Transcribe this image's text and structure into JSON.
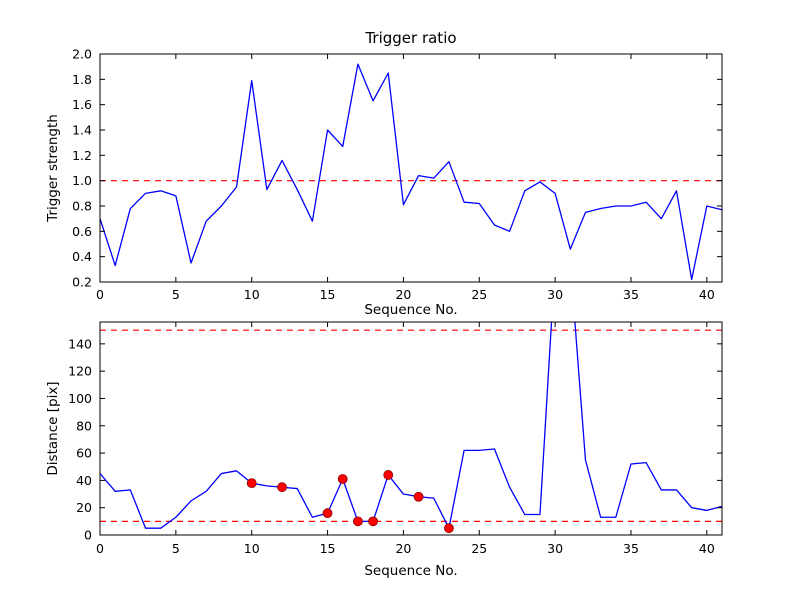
{
  "figure": {
    "background": "#ffffff",
    "line_color": "#0000ff",
    "threshold_color": "#ff0000",
    "marker_color": "#ff0000",
    "axes_color": "#000000"
  },
  "chart_data": [
    {
      "type": "line",
      "name": "trigger-ratio-chart",
      "title": "Trigger ratio",
      "xlabel": "Sequence No.",
      "ylabel": "Trigger strength",
      "xlim": [
        0,
        41
      ],
      "ylim": [
        0.2,
        2.0
      ],
      "xticks": [
        "0",
        "5",
        "10",
        "15",
        "20",
        "25",
        "30",
        "35",
        "40"
      ],
      "yticks": [
        "0.2",
        "0.4",
        "0.6",
        "0.8",
        "1.0",
        "1.2",
        "1.4",
        "1.6",
        "1.8",
        "2.0"
      ],
      "grid": false,
      "legend": null,
      "x": [
        0,
        1,
        2,
        3,
        4,
        5,
        6,
        7,
        8,
        9,
        10,
        11,
        12,
        13,
        14,
        15,
        16,
        17,
        18,
        19,
        20,
        21,
        22,
        23,
        24,
        25,
        26,
        27,
        28,
        29,
        30,
        31,
        32,
        33,
        34,
        35,
        36,
        37,
        38,
        39,
        40,
        41
      ],
      "series": [
        {
          "name": "trigger-strength",
          "color": "#0000ff",
          "values": [
            0.7,
            0.33,
            0.78,
            0.9,
            0.92,
            0.88,
            0.35,
            0.68,
            0.8,
            0.95,
            1.79,
            0.93,
            1.16,
            0.93,
            0.68,
            1.4,
            1.27,
            1.92,
            1.63,
            1.85,
            0.81,
            1.04,
            1.02,
            1.15,
            0.83,
            0.82,
            0.65,
            0.6,
            0.92,
            0.99,
            0.9,
            0.46,
            0.75,
            0.78,
            0.8,
            0.8,
            0.83,
            0.7,
            0.92,
            0.22,
            0.8,
            0.77
          ]
        }
      ],
      "hlines": [
        {
          "y": 1.0,
          "color": "#ff0000",
          "style": "dashed"
        }
      ],
      "markers": null
    },
    {
      "type": "line",
      "name": "distance-chart",
      "title": "",
      "xlabel": "Sequence No.",
      "ylabel": "Distance [pix]",
      "xlim": [
        0,
        41
      ],
      "ylim": [
        0,
        156
      ],
      "xticks": [
        "0",
        "5",
        "10",
        "15",
        "20",
        "25",
        "30",
        "35",
        "40"
      ],
      "yticks": [
        "0",
        "20",
        "40",
        "60",
        "80",
        "100",
        "120",
        "140"
      ],
      "grid": false,
      "legend": null,
      "x": [
        0,
        1,
        2,
        3,
        4,
        5,
        6,
        7,
        8,
        9,
        10,
        11,
        12,
        13,
        14,
        15,
        16,
        17,
        18,
        19,
        20,
        21,
        22,
        23,
        24,
        25,
        26,
        27,
        28,
        29,
        30,
        31,
        32,
        33,
        34,
        35,
        36,
        37,
        38,
        39,
        40,
        41
      ],
      "series": [
        {
          "name": "distance",
          "color": "#0000ff",
          "values": [
            45,
            32,
            33,
            5,
            5,
            13,
            25,
            32,
            45,
            47,
            38,
            36,
            35,
            34,
            13,
            16,
            41,
            10,
            10,
            44,
            30,
            28,
            27,
            5,
            62,
            62,
            63,
            35,
            15,
            15,
            200,
            200,
            55,
            13,
            13,
            52,
            53,
            33,
            33,
            20,
            18,
            21
          ]
        }
      ],
      "hlines": [
        {
          "y": 150,
          "color": "#ff0000",
          "style": "dashed"
        },
        {
          "y": 10,
          "color": "#ff0000",
          "style": "dashed"
        }
      ],
      "markers": {
        "name": "trigger-event-markers",
        "color": "#ff0000",
        "points": [
          [
            10,
            38
          ],
          [
            12,
            35
          ],
          [
            15,
            16
          ],
          [
            16,
            41
          ],
          [
            17,
            10
          ],
          [
            18,
            10
          ],
          [
            19,
            44
          ],
          [
            21,
            28
          ],
          [
            23,
            5
          ]
        ]
      }
    }
  ]
}
